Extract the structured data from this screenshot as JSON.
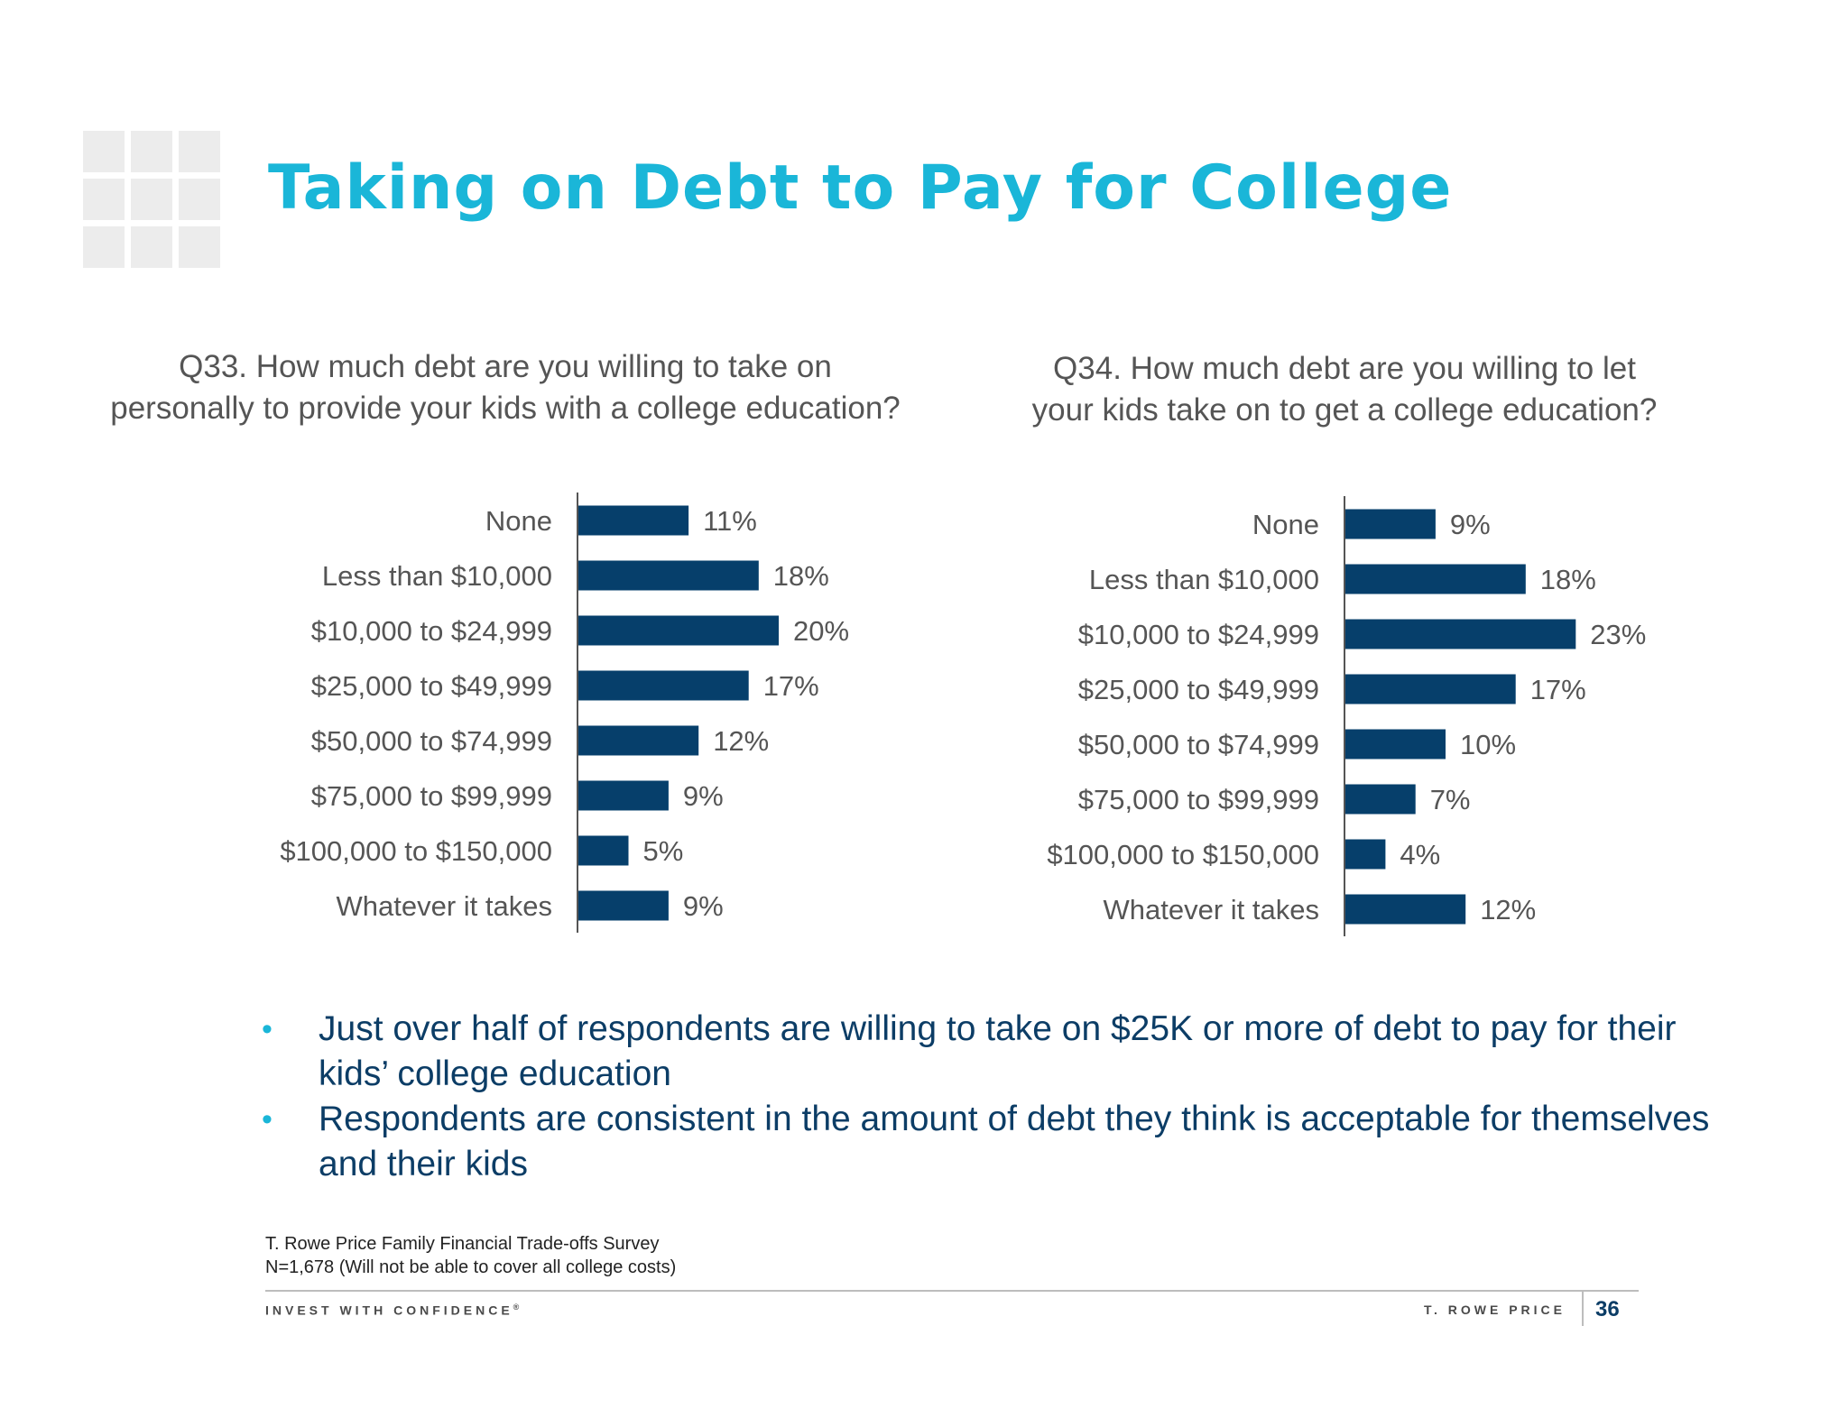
{
  "slide": {
    "title": "Taking on Debt to Pay for College",
    "bullets": [
      "Just over half of respondents are willing to take on $25K or more of debt to pay for their kids’ college education",
      "Respondents are consistent in the amount of debt they think is acceptable for themselves and their kids"
    ],
    "bullet_char": "•",
    "source_line1": "T. Rowe Price Family Financial Trade-offs Survey",
    "source_line2": "N=1,678 (Will not be able to cover all college costs)",
    "footer_left": "INVEST WITH CONFIDENCE",
    "footer_left_mark": "®",
    "footer_right": "T. ROWE PRICE",
    "page_number": "36"
  },
  "colors": {
    "title": "#1ab6d8",
    "bar": "#063f6b",
    "bullet_dot": "#1ab6d8",
    "bullet_text": "#0c3d66",
    "axis": "#555555",
    "label_text": "#555555",
    "page_number": "#0c3d66",
    "deco_grid": "#ececec"
  },
  "chart_data": [
    {
      "type": "bar",
      "orientation": "horizontal",
      "title_lines": [
        "Q33. How much debt are you willing to take on",
        "personally to provide your kids with a college education?"
      ],
      "categories": [
        "None",
        "Less than $10,000",
        "$10,000 to $24,999",
        "$25,000 to $49,999",
        "$50,000 to $74,999",
        "$75,000 to $99,999",
        "$100,000 to $150,000",
        "Whatever it takes"
      ],
      "values": [
        11,
        18,
        20,
        17,
        12,
        9,
        5,
        9
      ],
      "value_labels": [
        "11%",
        "18%",
        "20%",
        "17%",
        "12%",
        "9%",
        "5%",
        "9%"
      ],
      "unit": "%",
      "xlim": [
        0,
        23
      ],
      "legend": "none",
      "grid": false
    },
    {
      "type": "bar",
      "orientation": "horizontal",
      "title_lines": [
        "Q34. How much debt are you willing to let",
        "your kids take on to get a college education?"
      ],
      "categories": [
        "None",
        "Less than $10,000",
        "$10,000 to $24,999",
        "$25,000 to $49,999",
        "$50,000 to $74,999",
        "$75,000 to $99,999",
        "$100,000 to $150,000",
        "Whatever it takes"
      ],
      "values": [
        9,
        18,
        23,
        17,
        10,
        7,
        4,
        12
      ],
      "value_labels": [
        "9%",
        "18%",
        "23%",
        "17%",
        "10%",
        "7%",
        "4%",
        "12%"
      ],
      "unit": "%",
      "xlim": [
        0,
        23
      ],
      "legend": "none",
      "grid": false
    }
  ]
}
